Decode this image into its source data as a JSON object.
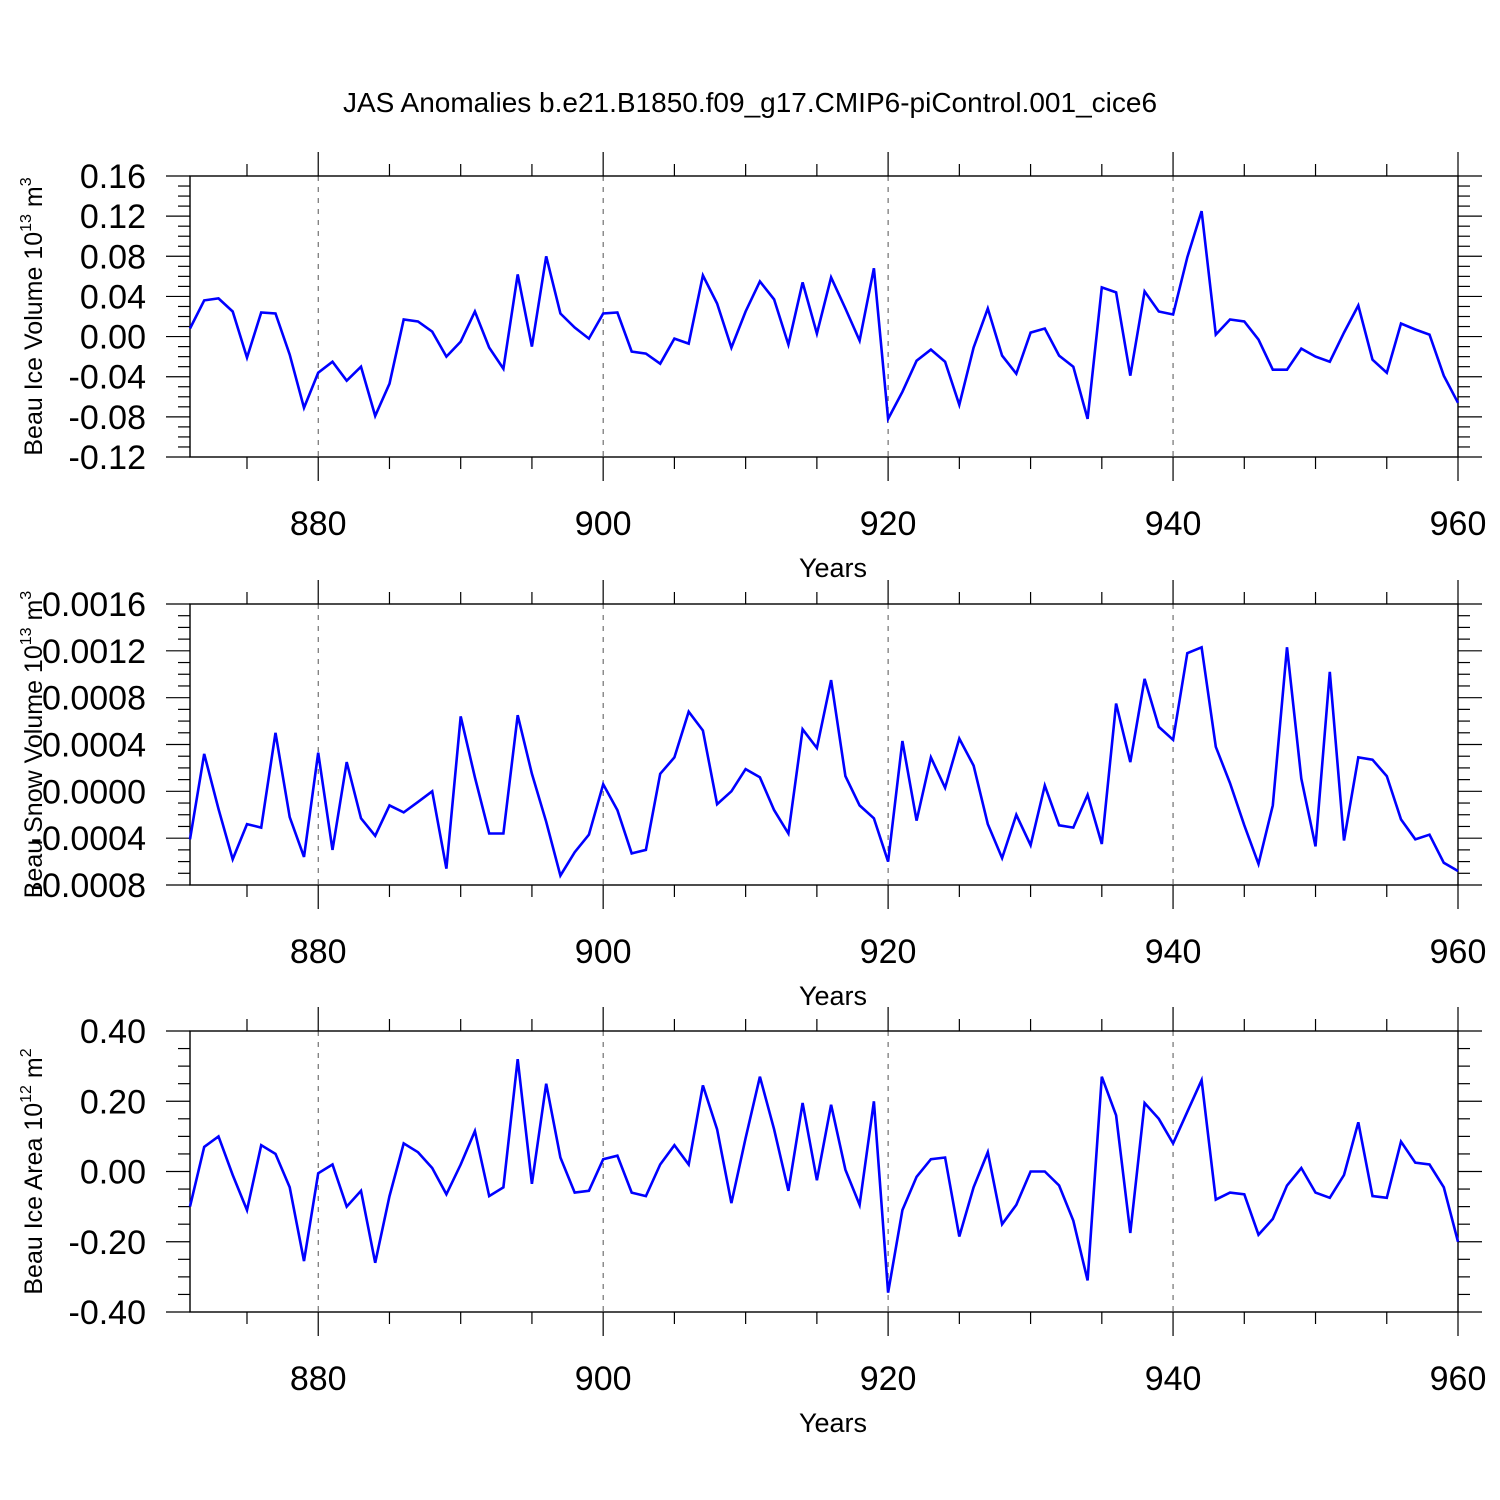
{
  "figure_title": "JAS Anomalies b.e21.B1850.f09_g17.CMIP6-piControl.001_cice6",
  "colors": {
    "line": "#0000ff",
    "axis": "#000000",
    "grid": "#555555"
  },
  "chart_data": [
    {
      "type": "line",
      "xlabel": "Years",
      "ylabel": {
        "main": "Beau Ice Volume 10",
        "sup": "13",
        "unit": " m",
        "unit_sup": "3"
      },
      "xlim": [
        871,
        960
      ],
      "ylim": [
        -0.12,
        0.16
      ],
      "x_ticks": [
        880,
        900,
        920,
        940,
        960
      ],
      "y_ticks": [
        -0.12,
        -0.08,
        -0.04,
        0.0,
        0.04,
        0.08,
        0.12,
        0.16
      ],
      "y_tick_labels": [
        "-0.12",
        "-0.08",
        "-0.04",
        "0.00",
        "0.04",
        "0.08",
        "0.12",
        "0.16"
      ],
      "x_start": 871,
      "values": [
        0.008,
        0.036,
        0.038,
        0.025,
        -0.021,
        0.024,
        0.023,
        -0.018,
        -0.071,
        -0.036,
        -0.025,
        -0.044,
        -0.03,
        -0.079,
        -0.047,
        0.017,
        0.015,
        0.005,
        -0.02,
        -0.005,
        0.025,
        -0.011,
        -0.032,
        0.062,
        -0.01,
        0.08,
        0.023,
        0.009,
        -0.002,
        0.023,
        0.024,
        -0.015,
        -0.017,
        -0.027,
        -0.002,
        -0.007,
        0.061,
        0.033,
        -0.011,
        0.025,
        0.055,
        0.037,
        -0.008,
        0.054,
        0.003,
        0.059,
        0.028,
        -0.004,
        0.068,
        -0.082,
        -0.055,
        -0.024,
        -0.013,
        -0.025,
        -0.068,
        -0.011,
        0.028,
        -0.019,
        -0.037,
        0.004,
        0.008,
        -0.019,
        -0.03,
        -0.082,
        0.049,
        0.044,
        -0.039,
        0.045,
        0.025,
        0.022,
        0.079,
        0.125,
        0.002,
        0.017,
        0.015,
        -0.003,
        -0.033,
        -0.033,
        -0.012,
        -0.02,
        -0.025,
        0.004,
        0.031,
        -0.023,
        -0.036,
        0.013,
        0.007,
        0.002,
        -0.039,
        -0.066
      ]
    },
    {
      "type": "line",
      "xlabel": "Years",
      "ylabel": {
        "main": "Beau Snow Volume 10",
        "sup": "13",
        "unit": " m",
        "unit_sup": "3"
      },
      "xlim": [
        871,
        960
      ],
      "ylim": [
        -0.0008,
        0.0016
      ],
      "x_ticks": [
        880,
        900,
        920,
        940,
        960
      ],
      "y_ticks": [
        -0.0008,
        -0.0004,
        0.0,
        0.0004,
        0.0008,
        0.0012,
        0.0016
      ],
      "y_tick_labels": [
        "-0.0008",
        "-0.0004",
        "0.0000",
        "0.0004",
        "0.0008",
        "0.0012",
        "0.0016"
      ],
      "x_start": 871,
      "values": [
        -0.00041,
        0.00032,
        -0.00015,
        -0.00058,
        -0.00028,
        -0.00031,
        0.0005,
        -0.00022,
        -0.00056,
        0.00033,
        -0.0005,
        0.00025,
        -0.00023,
        -0.00038,
        -0.00012,
        -0.00018,
        -9e-05,
        0.0,
        -0.00066,
        0.00064,
        0.00012,
        -0.00036,
        -0.00036,
        0.00065,
        0.00015,
        -0.00026,
        -0.00072,
        -0.00052,
        -0.00037,
        6e-05,
        -0.00016,
        -0.00053,
        -0.0005,
        0.00015,
        0.00029,
        0.00068,
        0.00052,
        -0.00011,
        0.0,
        0.00019,
        0.00012,
        -0.00016,
        -0.00036,
        0.00053,
        0.00037,
        0.00095,
        0.00013,
        -0.00012,
        -0.00023,
        -0.0006,
        0.00043,
        -0.00025,
        0.00029,
        3e-05,
        0.00045,
        0.00022,
        -0.00028,
        -0.00057,
        -0.0002,
        -0.00046,
        5e-05,
        -0.00029,
        -0.00031,
        -3e-05,
        -0.00045,
        0.00075,
        0.00025,
        0.00096,
        0.00055,
        0.00044,
        0.00118,
        0.00123,
        0.00038,
        7e-05,
        -0.00029,
        -0.00062,
        -0.00012,
        0.00123,
        0.00011,
        -0.00047,
        0.00102,
        -0.00042,
        0.00029,
        0.00027,
        0.00013,
        -0.00024,
        -0.00041,
        -0.00037,
        -0.00061,
        -0.00068
      ]
    },
    {
      "type": "line",
      "xlabel": "Years",
      "ylabel": {
        "main": "Beau Ice Area 10",
        "sup": "12",
        "unit": " m",
        "unit_sup": "2"
      },
      "xlim": [
        871,
        960
      ],
      "ylim": [
        -0.4,
        0.4
      ],
      "x_ticks": [
        880,
        900,
        920,
        940,
        960
      ],
      "y_ticks": [
        -0.4,
        -0.2,
        0.0,
        0.2,
        0.4
      ],
      "y_tick_labels": [
        "-0.40",
        "-0.20",
        "0.00",
        "0.20",
        "0.40"
      ],
      "x_start": 871,
      "values": [
        -0.1,
        0.07,
        0.1,
        -0.01,
        -0.11,
        0.075,
        0.05,
        -0.045,
        -0.255,
        -0.005,
        0.02,
        -0.1,
        -0.055,
        -0.26,
        -0.07,
        0.08,
        0.055,
        0.01,
        -0.065,
        0.02,
        0.115,
        -0.07,
        -0.045,
        0.32,
        -0.035,
        0.25,
        0.04,
        -0.06,
        -0.055,
        0.035,
        0.045,
        -0.06,
        -0.07,
        0.02,
        0.075,
        0.02,
        0.245,
        0.12,
        -0.09,
        0.095,
        0.27,
        0.12,
        -0.055,
        0.195,
        -0.025,
        0.19,
        0.005,
        -0.095,
        0.2,
        -0.345,
        -0.11,
        -0.015,
        0.035,
        0.04,
        -0.185,
        -0.045,
        0.055,
        -0.15,
        -0.095,
        0.0,
        0.0,
        -0.04,
        -0.14,
        -0.31,
        0.27,
        0.16,
        -0.175,
        0.195,
        0.15,
        0.08,
        0.17,
        0.26,
        -0.08,
        -0.06,
        -0.065,
        -0.18,
        -0.135,
        -0.04,
        0.01,
        -0.06,
        -0.075,
        -0.01,
        0.14,
        -0.07,
        -0.075,
        0.085,
        0.025,
        0.02,
        -0.045,
        -0.2
      ]
    }
  ]
}
